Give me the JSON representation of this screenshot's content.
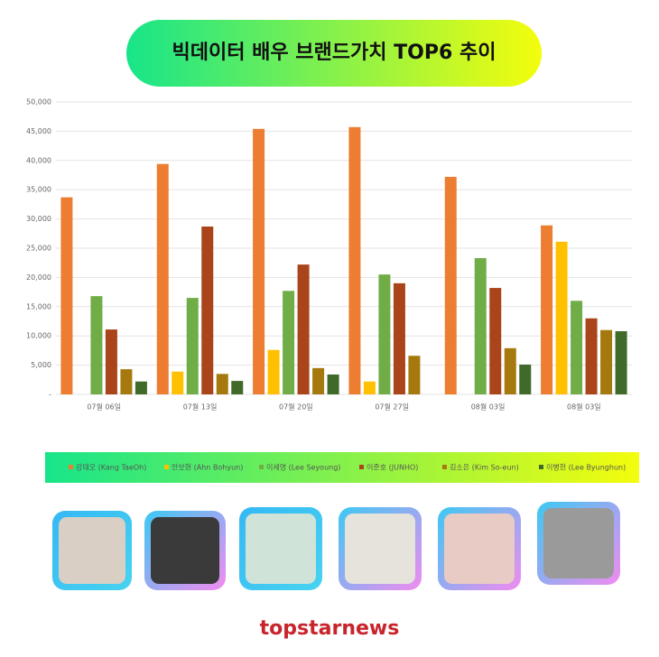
{
  "chart_data": {
    "type": "bar",
    "title": "빅데이터 배우 브랜드가치 TOP6 추이",
    "categories": [
      "07월 06일",
      "07월 13일",
      "07월 20일",
      "07월 27일",
      "08월 03일",
      "08월 03일"
    ],
    "series": [
      {
        "name": "강태오 (Kang TaeOh)",
        "color": "#ed7d31",
        "values": [
          33700,
          39400,
          45400,
          45700,
          37200,
          28900
        ]
      },
      {
        "name": "안보현 (Ahn Bohyun)",
        "color": "#ffc000",
        "values": [
          null,
          3900,
          7600,
          2200,
          null,
          26100
        ]
      },
      {
        "name": "이세영 (Lee Seyoung)",
        "color": "#70ad47",
        "values": [
          16800,
          16500,
          17700,
          20500,
          23300,
          16000
        ]
      },
      {
        "name": "이준호 (JUNHO)",
        "color": "#a9441b",
        "values": [
          11100,
          28700,
          22200,
          19000,
          18200,
          13000
        ]
      },
      {
        "name": "김소은 (Kim So-eun)",
        "color": "#a6790f",
        "values": [
          4300,
          3500,
          4500,
          6600,
          7900,
          11000
        ]
      },
      {
        "name": "이병헌 (Lee Byunghun)",
        "color": "#3f6a2a",
        "values": [
          2200,
          2300,
          3400,
          null,
          5100,
          10800
        ]
      }
    ],
    "ylim": [
      0,
      50000
    ],
    "yticks": [
      {
        "value": 0,
        "label": "-"
      },
      {
        "value": 5000,
        "label": "5,000"
      },
      {
        "value": 10000,
        "label": "10,000"
      },
      {
        "value": 15000,
        "label": "15,000"
      },
      {
        "value": 20000,
        "label": "20,000"
      },
      {
        "value": 25000,
        "label": "25,000"
      },
      {
        "value": 30000,
        "label": "30,000"
      },
      {
        "value": 35000,
        "label": "35,000"
      },
      {
        "value": 40000,
        "label": "40,000"
      },
      {
        "value": 45000,
        "label": "45,000"
      },
      {
        "value": 50000,
        "label": "50,000"
      }
    ],
    "grid": true,
    "source": "topstarnews"
  }
}
